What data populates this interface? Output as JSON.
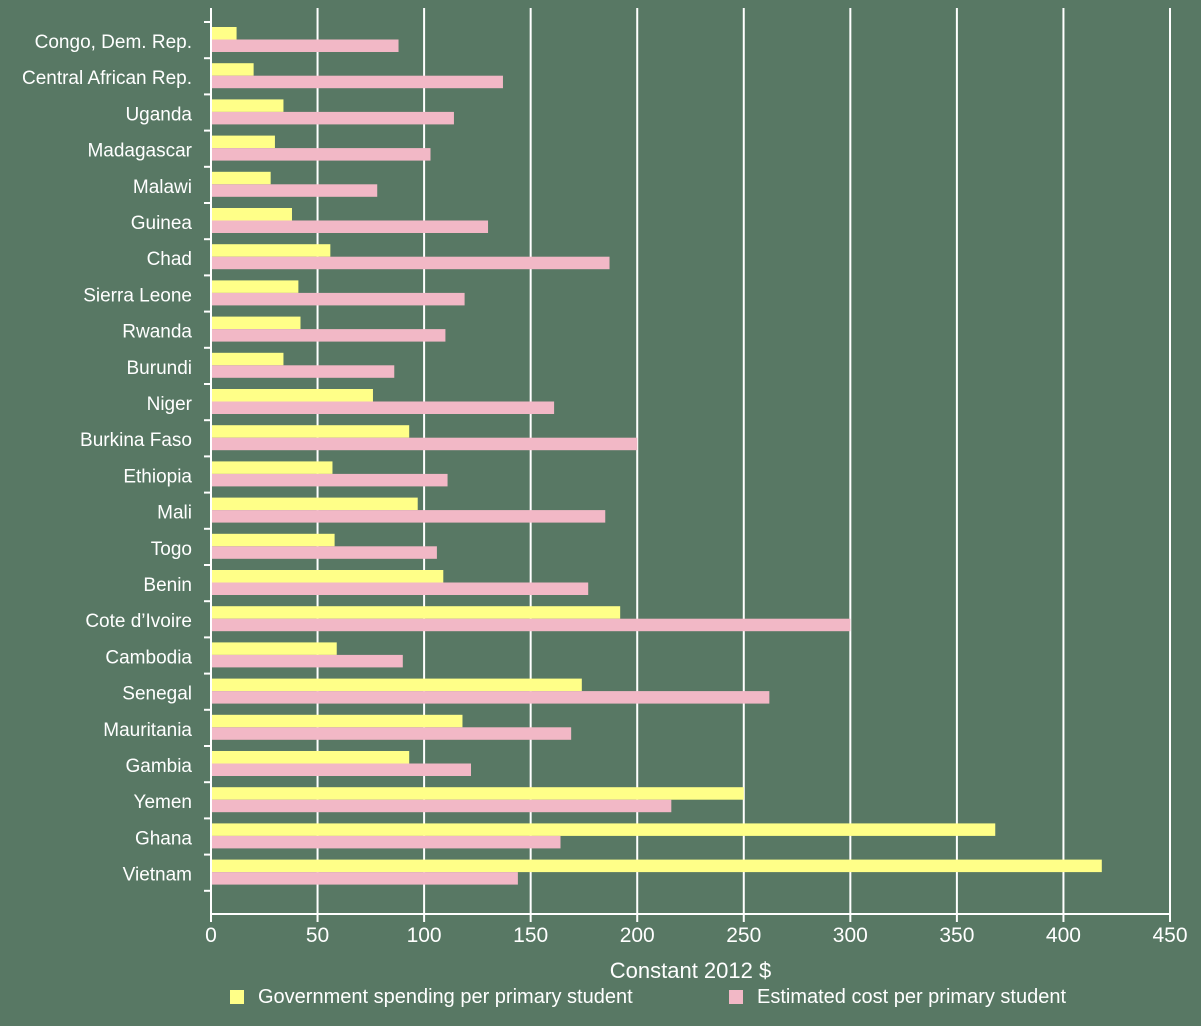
{
  "colors": {
    "background": "#587864",
    "government": "#ffff88",
    "estimated": "#f2b8c6",
    "grid": "#ffffff",
    "text": "#ffffff"
  },
  "chart_data": {
    "type": "bar",
    "orientation": "horizontal",
    "categories": [
      "Congo, Dem. Rep.",
      "Central African Rep.",
      "Uganda",
      "Madagascar",
      "Malawi",
      "Guinea",
      "Chad",
      "Sierra Leone",
      "Rwanda",
      "Burundi",
      "Niger",
      "Burkina Faso",
      "Ethiopia",
      "Mali",
      "Togo",
      "Benin",
      "Cote d’Ivoire",
      "Cambodia",
      "Senegal",
      "Mauritania",
      "Gambia",
      "Yemen",
      "Ghana",
      "Vietnam"
    ],
    "series": [
      {
        "name": "Government spending per primary student",
        "color": "#ffff88",
        "values": [
          12,
          20,
          34,
          30,
          28,
          38,
          56,
          41,
          42,
          34,
          76,
          93,
          57,
          97,
          58,
          109,
          192,
          59,
          174,
          118,
          93,
          250,
          368,
          418
        ]
      },
      {
        "name": "Estimated cost per primary student",
        "color": "#f2b8c6",
        "values": [
          88,
          137,
          114,
          103,
          78,
          130,
          187,
          119,
          110,
          86,
          161,
          200,
          111,
          185,
          106,
          177,
          300,
          90,
          262,
          169,
          122,
          216,
          164,
          144
        ]
      }
    ],
    "xlabel": "Constant 2012 $",
    "ylabel": "",
    "xlim": [
      0,
      450
    ],
    "xticks": [
      0,
      50,
      100,
      150,
      200,
      250,
      300,
      350,
      400,
      450
    ],
    "grid": true,
    "legend_position": "bottom"
  }
}
